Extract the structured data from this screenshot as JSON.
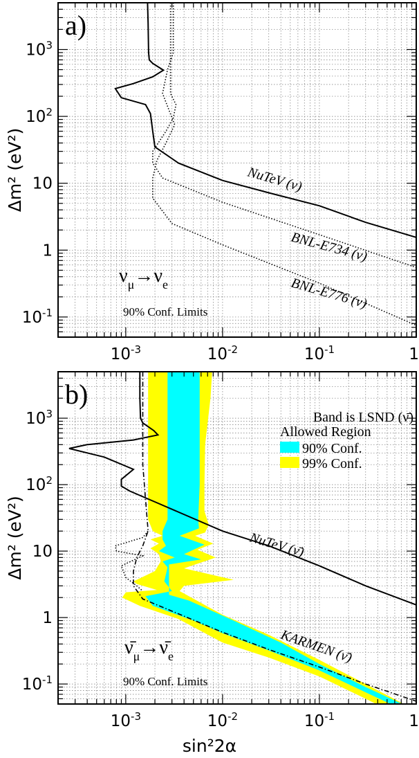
{
  "chart_data": [
    {
      "type": "line",
      "panel_label": "a)",
      "xlabel": "",
      "ylabel": "Δm² (eV²)",
      "xscale": "log",
      "yscale": "log",
      "xlim": [
        0.0002,
        1
      ],
      "ylim": [
        0.05,
        5000
      ],
      "x_ticks": [
        "10^-3",
        "10^-2",
        "10^-1",
        "1"
      ],
      "y_ticks": [
        "10^-1",
        "1",
        "10",
        "10^2",
        "10^3"
      ],
      "grid": true,
      "process_label": "ν_μ→ν_e",
      "confidence_label": "90% Conf. Limits",
      "series": [
        {
          "name": "NuTeV (ν)",
          "style": "solid",
          "points": [
            [
              0.00168,
              5000
            ],
            [
              0.0017,
              2500
            ],
            [
              0.00172,
              900
            ],
            [
              0.00175,
              700
            ],
            [
              0.0019,
              620
            ],
            [
              0.00245,
              490
            ],
            [
              0.0019,
              390
            ],
            [
              0.0012,
              310
            ],
            [
              0.00078,
              260
            ],
            [
              0.0009,
              190
            ],
            [
              0.0016,
              150
            ],
            [
              0.0018,
              110
            ],
            [
              0.0019,
              60
            ],
            [
              0.002,
              35
            ],
            [
              0.0035,
              20
            ],
            [
              0.01,
              11
            ],
            [
              0.03,
              7.2
            ],
            [
              0.1,
              4.6
            ],
            [
              0.3,
              2.6
            ],
            [
              1,
              1.55
            ]
          ]
        },
        {
          "name": "BNL-E734 (ν)",
          "style": "dotted",
          "points": [
            [
              0.0029,
              5000
            ],
            [
              0.0029,
              220
            ],
            [
              0.0033,
              150
            ],
            [
              0.0031,
              95
            ],
            [
              0.0026,
              60
            ],
            [
              0.0019,
              30
            ],
            [
              0.0019,
              20
            ],
            [
              0.0024,
              12
            ],
            [
              0.01,
              5.2
            ],
            [
              0.1,
              1.7
            ],
            [
              1,
              0.55
            ]
          ]
        },
        {
          "name": "BNL-E776 (ν)",
          "style": "dotted",
          "points": [
            [
              0.0031,
              5000
            ],
            [
              0.0031,
              900
            ],
            [
              0.0027,
              500
            ],
            [
              0.0024,
              220
            ],
            [
              0.0032,
              75
            ],
            [
              0.0026,
              40
            ],
            [
              0.0021,
              22
            ],
            [
              0.0019,
              12
            ],
            [
              0.0019,
              6
            ],
            [
              0.003,
              2.5
            ],
            [
              0.01,
              1.2
            ],
            [
              0.1,
              0.32
            ],
            [
              1,
              0.075
            ]
          ]
        }
      ]
    },
    {
      "type": "line",
      "panel_label": "b)",
      "xlabel": "sin²2α",
      "ylabel": "Δm² (eV²)",
      "xscale": "log",
      "yscale": "log",
      "xlim": [
        0.0002,
        1
      ],
      "ylim": [
        0.05,
        5000
      ],
      "x_ticks": [
        "10^-3",
        "10^-2",
        "10^-1",
        "1"
      ],
      "y_ticks": [
        "10^-1",
        "1",
        "10",
        "10^2",
        "10^3"
      ],
      "grid": true,
      "process_label": "ν̄_μ→ν̄_e",
      "confidence_label": "90% Conf. Limits",
      "legend": {
        "title_line1": "Band is LSND (ν̄)",
        "title_line2": "Allowed Region",
        "entries": [
          {
            "label": "90% Conf.",
            "color": "#00ffff"
          },
          {
            "label": "99% Conf.",
            "color": "#ffff00"
          }
        ],
        "placement": "top-right"
      },
      "series": [
        {
          "name": "NuTeV (ν̄)",
          "style": "solid",
          "points": [
            [
              0.0014,
              5000
            ],
            [
              0.0014,
              2000
            ],
            [
              0.00142,
              1000
            ],
            [
              0.0015,
              850
            ],
            [
              0.00195,
              650
            ],
            [
              0.00215,
              560
            ],
            [
              0.0012,
              470
            ],
            [
              0.0004,
              400
            ],
            [
              0.00026,
              350
            ],
            [
              0.0006,
              260
            ],
            [
              0.0012,
              170
            ],
            [
              0.0009,
              120
            ],
            [
              0.0009,
              95
            ],
            [
              0.0011,
              80
            ],
            [
              0.002,
              55
            ],
            [
              0.01,
              20
            ],
            [
              0.03,
              12
            ],
            [
              0.1,
              6
            ],
            [
              0.3,
              3
            ],
            [
              1,
              1.55
            ]
          ]
        },
        {
          "name": "KARMEN (ν̄)",
          "style": "dashdot",
          "points": [
            [
              0.0015,
              5000
            ],
            [
              0.0015,
              200
            ],
            [
              0.0016,
              60
            ],
            [
              0.0017,
              20
            ],
            [
              0.0015,
              12
            ],
            [
              0.0013,
              8
            ],
            [
              0.0012,
              5
            ],
            [
              0.0012,
              3
            ],
            [
              0.0015,
              1.9
            ],
            [
              0.004,
              1.05
            ],
            [
              0.01,
              0.6
            ],
            [
              0.03,
              0.33
            ],
            [
              0.1,
              0.18
            ],
            [
              0.3,
              0.1
            ],
            [
              1,
              0.055
            ]
          ]
        },
        {
          "name": "",
          "style": "dotted",
          "points": [
            [
              0.0017,
              20
            ],
            [
              0.0015,
              16
            ],
            [
              0.00078,
              12
            ],
            [
              0.0008,
              10
            ],
            [
              0.0015,
              8.5
            ],
            [
              0.0009,
              6
            ],
            [
              0.001,
              4
            ],
            [
              0.0013,
              3
            ],
            [
              0.0015,
              2.5
            ]
          ]
        }
      ],
      "bands": {
        "outer_99": [
          [
            0.0017,
            5000
          ],
          [
            0.0078,
            5000
          ],
          [
            0.0075,
            2000
          ],
          [
            0.0066,
            400
          ],
          [
            0.0065,
            100
          ],
          [
            0.0065,
            40
          ],
          [
            0.0072,
            25
          ],
          [
            0.0066,
            19
          ],
          [
            0.0052,
            17
          ],
          [
            0.008,
            13
          ],
          [
            0.0055,
            10.5
          ],
          [
            0.0085,
            8
          ],
          [
            0.004,
            5.5
          ],
          [
            0.013,
            3.7
          ],
          [
            0.004,
            3
          ],
          [
            0.0036,
            2.5
          ],
          [
            0.01,
            1.1
          ],
          [
            0.03,
            0.55
          ],
          [
            0.1,
            0.23
          ],
          [
            0.3,
            0.1
          ],
          [
            1,
            0.04
          ],
          [
            1,
            0.025
          ],
          [
            0.3,
            0.06
          ],
          [
            0.1,
            0.13
          ],
          [
            0.03,
            0.25
          ],
          [
            0.01,
            0.42
          ],
          [
            0.0035,
            0.95
          ],
          [
            0.0014,
            1.5
          ],
          [
            0.00092,
            2
          ],
          [
            0.001,
            2.4
          ],
          [
            0.0021,
            2.6
          ],
          [
            0.0013,
            3.2
          ],
          [
            0.0012,
            3.5
          ],
          [
            0.002,
            5
          ],
          [
            0.0023,
            7
          ],
          [
            0.0022,
            9
          ],
          [
            0.0018,
            11
          ],
          [
            0.0022,
            13
          ],
          [
            0.0018,
            15
          ],
          [
            0.0024,
            17
          ],
          [
            0.0019,
            20
          ],
          [
            0.0017,
            30
          ],
          [
            0.0017,
            100
          ],
          [
            0.0017,
            1000
          ]
        ],
        "inner_90": [
          [
            0.0027,
            5000
          ],
          [
            0.0058,
            5000
          ],
          [
            0.0058,
            1000
          ],
          [
            0.0058,
            100
          ],
          [
            0.0056,
            30
          ],
          [
            0.0057,
            22
          ],
          [
            0.0036,
            17
          ],
          [
            0.0065,
            12.5
          ],
          [
            0.004,
            9
          ],
          [
            0.006,
            7.5
          ],
          [
            0.0028,
            6.3
          ],
          [
            0.0028,
            2.2
          ],
          [
            0.0045,
            1.8
          ],
          [
            0.013,
            0.9
          ],
          [
            0.04,
            0.42
          ],
          [
            0.1,
            0.2
          ],
          [
            0.3,
            0.09
          ],
          [
            1,
            0.04
          ],
          [
            1,
            0.033
          ],
          [
            0.3,
            0.075
          ],
          [
            0.1,
            0.16
          ],
          [
            0.03,
            0.32
          ],
          [
            0.01,
            0.58
          ],
          [
            0.005,
            0.9
          ],
          [
            0.0019,
            1.5
          ],
          [
            0.0016,
            2.1
          ],
          [
            0.003,
            2.5
          ],
          [
            0.0025,
            3.5
          ],
          [
            0.0027,
            5.7
          ],
          [
            0.0024,
            7
          ],
          [
            0.0032,
            8
          ],
          [
            0.0022,
            10
          ],
          [
            0.0026,
            12
          ],
          [
            0.0024,
            15
          ],
          [
            0.0024,
            20
          ],
          [
            0.0027,
            30
          ]
        ]
      }
    }
  ]
}
